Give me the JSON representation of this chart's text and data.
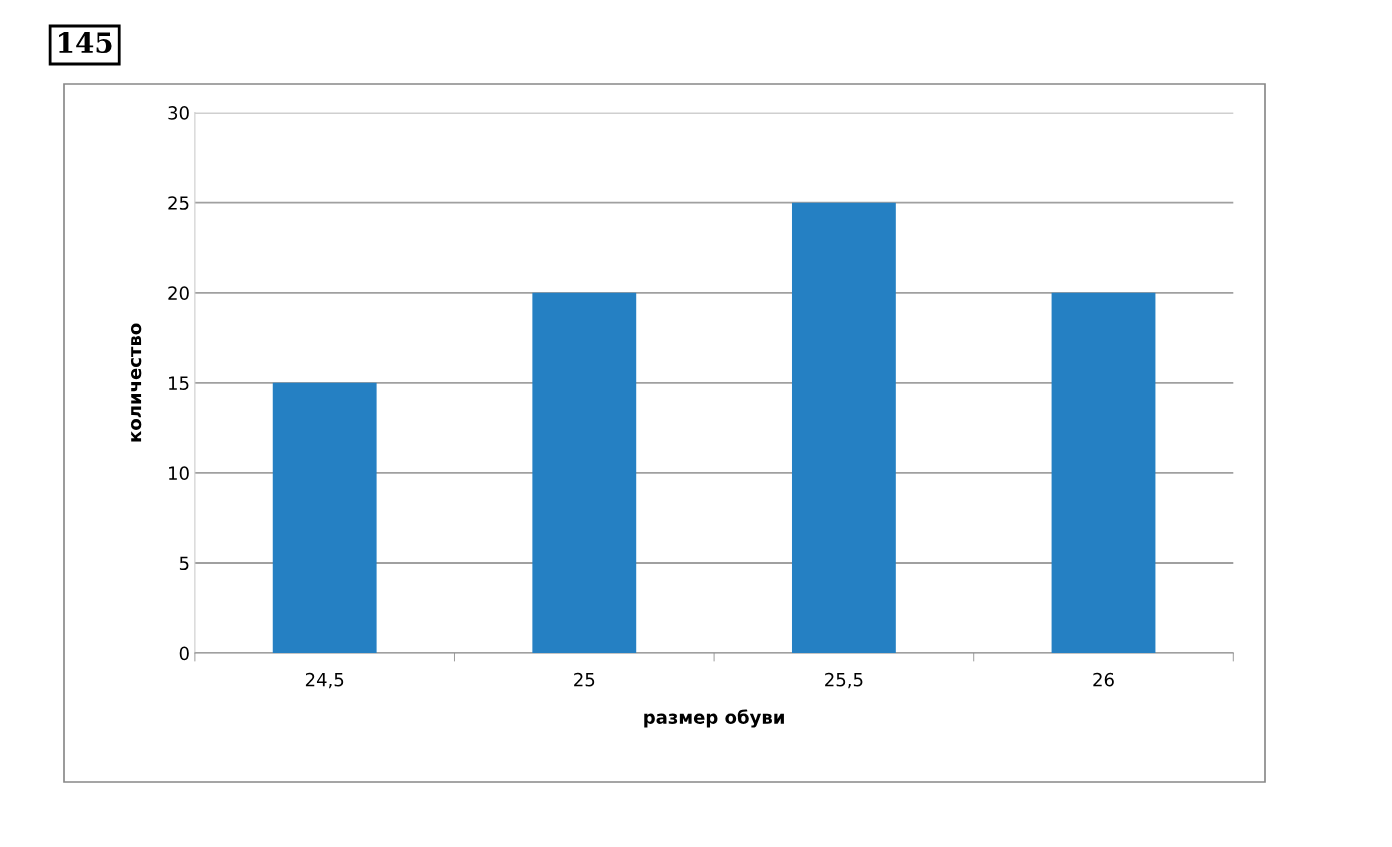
{
  "chart_data": {
    "type": "bar",
    "categories": [
      "24,5",
      "25",
      "25,5",
      "26"
    ],
    "values": [
      15,
      20,
      25,
      20
    ],
    "color": "#2580c3",
    "xlabel": "размер обуви",
    "ylabel": "количество",
    "ylim": [
      0,
      30
    ],
    "yticks": [
      0,
      5,
      10,
      15,
      20,
      25,
      30
    ],
    "grid": "y",
    "annotations": [
      "145"
    ]
  }
}
